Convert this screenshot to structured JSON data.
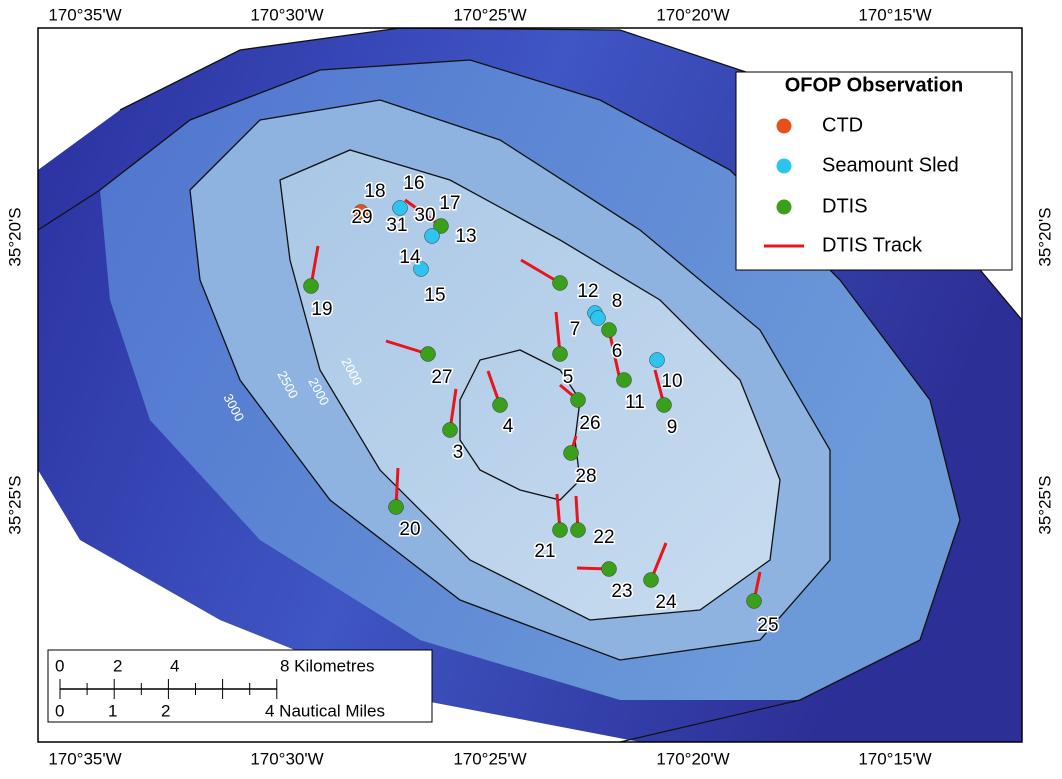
{
  "map": {
    "top_labels": [
      "170°35'W",
      "170°30'W",
      "170°25'W",
      "170°20'W",
      "170°15'W"
    ],
    "bottom_labels": [
      "170°35'W",
      "170°30'W",
      "170°25'W",
      "170°20'W",
      "170°15'W"
    ],
    "left_labels": [
      "35°20'S",
      "35°25'S"
    ],
    "right_labels": [
      "35°20'S",
      "35°25'S"
    ],
    "contour_labels": [
      "3000",
      "2500",
      "2000",
      "2000"
    ],
    "station_labels": [
      "19",
      "18",
      "29",
      "16",
      "31",
      "30",
      "17",
      "13",
      "14",
      "15",
      "12",
      "8",
      "7",
      "6",
      "5",
      "11",
      "10",
      "9",
      "26",
      "27",
      "4",
      "3",
      "28",
      "20",
      "21",
      "22",
      "23",
      "24",
      "25"
    ]
  },
  "legend": {
    "title": "OFOP Observation",
    "items": [
      {
        "label": "CTD",
        "color": "#e8501a"
      },
      {
        "label": "Seamount Sled",
        "color": "#2ec4f0"
      },
      {
        "label": "DTIS",
        "color": "#3aa01c"
      },
      {
        "label": "DTIS Track",
        "color": "#e8161c"
      }
    ]
  },
  "scale_bar": {
    "km_labels": [
      "0",
      "2",
      "4",
      "8 Kilometres"
    ],
    "nm_labels": [
      "0",
      "1",
      "2",
      "4 Nautical Miles"
    ]
  }
}
